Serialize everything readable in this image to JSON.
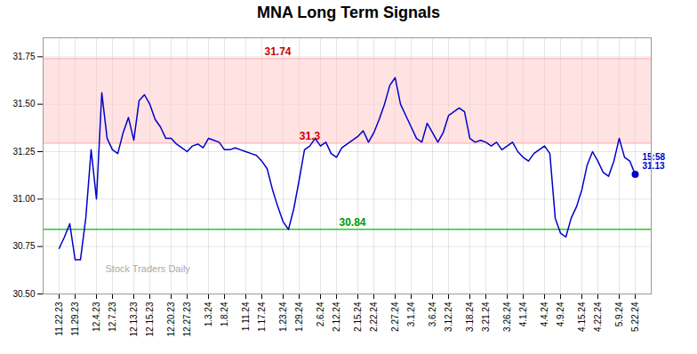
{
  "chart_data": {
    "type": "line",
    "title": "MNA Long Term Signals",
    "categories": [
      "11.22.23",
      null,
      null,
      "11.29.23",
      null,
      null,
      null,
      "12.4.23",
      null,
      null,
      "12.7.23",
      null,
      null,
      null,
      "12.13.23",
      null,
      null,
      "12.15.23",
      null,
      null,
      null,
      "12.20.23",
      null,
      null,
      "12.27.23",
      null,
      null,
      null,
      "1.3.24",
      null,
      null,
      "1.8.24",
      null,
      null,
      null,
      "1.11.24",
      null,
      null,
      "1.17.24",
      null,
      null,
      null,
      "1.23.24",
      null,
      null,
      "1.29.24",
      null,
      null,
      null,
      "2.6.24",
      null,
      null,
      "2.12.24",
      null,
      null,
      null,
      "2.15.24",
      null,
      null,
      "2.22.24",
      null,
      null,
      null,
      "2.27.24",
      null,
      null,
      "3.1.24",
      null,
      null,
      null,
      "3.6.24",
      null,
      null,
      "3.12.24",
      null,
      null,
      null,
      "3.18.24",
      null,
      null,
      "3.21.24",
      null,
      null,
      null,
      "3.26.24",
      null,
      null,
      "4.1.24",
      null,
      null,
      null,
      "4.4.24",
      null,
      null,
      "4.9.24",
      null,
      null,
      null,
      "4.15.24",
      null,
      null,
      "4.22.24",
      null,
      null,
      null,
      "5.9.24",
      null,
      null,
      "5.22.24"
    ],
    "values": [
      30.74,
      30.8,
      30.87,
      30.68,
      30.68,
      30.9,
      31.26,
      31.0,
      31.56,
      31.32,
      31.26,
      31.24,
      31.35,
      31.43,
      31.31,
      31.52,
      31.55,
      31.5,
      31.42,
      31.38,
      31.32,
      31.32,
      31.29,
      31.27,
      31.25,
      31.28,
      31.29,
      31.27,
      31.32,
      31.31,
      31.3,
      31.26,
      31.26,
      31.27,
      31.26,
      31.25,
      31.24,
      31.23,
      31.2,
      31.16,
      31.05,
      30.96,
      30.88,
      30.84,
      30.95,
      31.1,
      31.26,
      31.28,
      31.32,
      31.28,
      31.3,
      31.24,
      31.22,
      31.27,
      31.29,
      31.31,
      31.33,
      31.36,
      31.3,
      31.35,
      31.42,
      31.5,
      31.6,
      31.64,
      31.5,
      31.44,
      31.38,
      31.32,
      31.3,
      31.4,
      31.35,
      31.3,
      31.35,
      31.44,
      31.46,
      31.48,
      31.46,
      31.32,
      31.3,
      31.31,
      31.3,
      31.28,
      31.3,
      31.26,
      31.28,
      31.3,
      31.25,
      31.22,
      31.2,
      31.24,
      31.26,
      31.28,
      31.24,
      30.9,
      30.82,
      30.8,
      30.9,
      30.96,
      31.05,
      31.18,
      31.25,
      31.2,
      31.14,
      31.12,
      31.2,
      31.32,
      31.22,
      31.2,
      31.13
    ],
    "color": "#0000cc",
    "ylim": [
      30.5,
      31.85
    ],
    "yticks": [
      {
        "value": 30.5,
        "label": "30.50"
      },
      30.75,
      {
        "value": 31.0,
        "label": "31.00"
      },
      31.25,
      {
        "value": 31.5,
        "label": "31.50"
      },
      31.75
    ],
    "grid": true,
    "reference_lines": [
      {
        "value": 31.74,
        "color": "#ffb3b3"
      },
      {
        "value": 31.295,
        "color": "#ffb3b3"
      },
      {
        "value": 30.84,
        "color": "#00bb00"
      }
    ],
    "band": {
      "from": 31.295,
      "to": 31.74,
      "color": "#ffcccc"
    },
    "annotations": [
      {
        "text": "31.74",
        "y": 31.74,
        "color": "#cc0000"
      },
      {
        "text": "30.84",
        "y": 30.84,
        "color": "#009900"
      },
      {
        "text": "31.3",
        "y": 31.295,
        "color": "#cc0000"
      }
    ],
    "last_point": {
      "value": 31.13,
      "label": "15:58\n31.13"
    },
    "watermark": {
      "text": "Stock Traders Daily",
      "color": "#aaaaaa"
    }
  }
}
